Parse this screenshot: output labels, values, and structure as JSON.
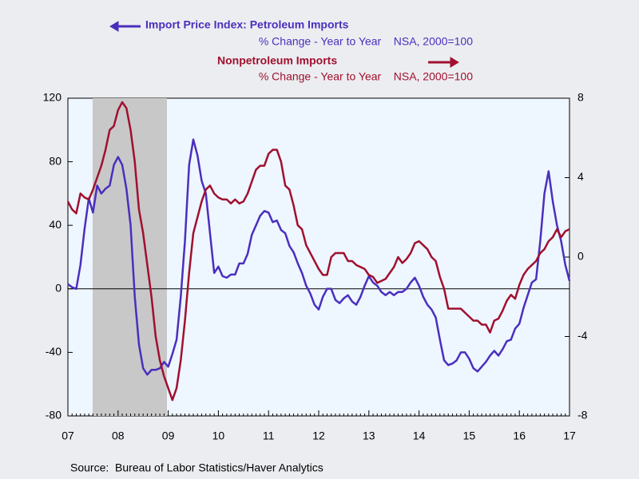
{
  "chart_data": {
    "type": "line",
    "series": [
      {
        "name": "Import Price Index: Petroleum Imports",
        "subtitle": "% Change - Year to Year    NSA, 2000=100",
        "color": "#4a2fbd",
        "axis": "y",
        "values": [
          3,
          1,
          0,
          15,
          38,
          57,
          48,
          65,
          60,
          63,
          65,
          78,
          83,
          78,
          63,
          40,
          -5,
          -35,
          -50,
          -54,
          -51,
          -51,
          -50,
          -46,
          -49,
          -41,
          -32,
          -5,
          30,
          78,
          94,
          84,
          68,
          60,
          35,
          10,
          14,
          8,
          7,
          9,
          9,
          16,
          16,
          22,
          34,
          40,
          46,
          49,
          48,
          42,
          43,
          37,
          35,
          27,
          23,
          16,
          10,
          2,
          -3,
          -10,
          -13,
          -5,
          0,
          0,
          -7,
          -9,
          -6,
          -4,
          -8,
          -10,
          -5,
          2,
          8,
          4,
          2,
          -2,
          -4,
          -2,
          -4,
          -2,
          -2,
          0,
          4,
          7,
          2,
          -5,
          -10,
          -13,
          -18,
          -32,
          -45,
          -48,
          -47,
          -45,
          -40,
          -40,
          -44,
          -50,
          -52,
          -49,
          -46,
          -42,
          -39,
          -42,
          -38,
          -33,
          -32,
          -25,
          -22,
          -12,
          -4,
          4,
          6,
          30,
          60,
          74,
          55,
          40,
          30,
          15,
          5
        ]
      },
      {
        "name": "Nonpetroleum Imports",
        "subtitle": "% Change - Year to Year    NSA, 2000=100",
        "color": "#a0102e",
        "axis": "y2",
        "values": [
          2.8,
          2.4,
          2.2,
          3.2,
          3.0,
          2.9,
          3.4,
          4.0,
          4.6,
          5.4,
          6.4,
          6.6,
          7.4,
          7.8,
          7.5,
          6.4,
          4.8,
          2.4,
          1.2,
          -0.4,
          -2.0,
          -4.0,
          -5.2,
          -6.0,
          -6.6,
          -7.2,
          -6.6,
          -5.2,
          -3.2,
          -0.8,
          1.2,
          2.0,
          2.8,
          3.4,
          3.6,
          3.2,
          3.0,
          2.9,
          2.9,
          2.7,
          2.9,
          2.7,
          2.8,
          3.2,
          3.8,
          4.4,
          4.6,
          4.6,
          5.2,
          5.4,
          5.4,
          4.8,
          3.6,
          3.4,
          2.6,
          1.6,
          1.4,
          0.6,
          0.2,
          -0.2,
          -0.6,
          -0.9,
          -0.9,
          0.0,
          0.2,
          0.2,
          0.2,
          -0.2,
          -0.2,
          -0.4,
          -0.5,
          -0.6,
          -0.9,
          -1.0,
          -1.3,
          -1.2,
          -1.1,
          -0.8,
          -0.5,
          0.0,
          -0.3,
          -0.1,
          0.2,
          0.7,
          0.8,
          0.6,
          0.4,
          0.0,
          -0.2,
          -1.0,
          -1.6,
          -2.6,
          -2.6,
          -2.6,
          -2.6,
          -2.8,
          -3.0,
          -3.2,
          -3.2,
          -3.4,
          -3.4,
          -3.8,
          -3.2,
          -3.1,
          -2.7,
          -2.2,
          -1.9,
          -2.1,
          -1.4,
          -0.9,
          -0.6,
          -0.4,
          -0.2,
          0.2,
          0.4,
          0.8,
          1.0,
          1.4,
          1.0,
          1.3,
          1.4
        ]
      }
    ],
    "categories": [
      "07",
      null,
      null,
      null,
      null,
      null,
      null,
      null,
      null,
      null,
      null,
      null,
      "08",
      null,
      null,
      null,
      null,
      null,
      null,
      null,
      null,
      null,
      null,
      null,
      "09",
      null,
      null,
      null,
      null,
      null,
      null,
      null,
      null,
      null,
      null,
      null,
      "10",
      null,
      null,
      null,
      null,
      null,
      null,
      null,
      null,
      null,
      null,
      null,
      "11",
      null,
      null,
      null,
      null,
      null,
      null,
      null,
      null,
      null,
      null,
      null,
      "12",
      null,
      null,
      null,
      null,
      null,
      null,
      null,
      null,
      null,
      null,
      null,
      "13",
      null,
      null,
      null,
      null,
      null,
      null,
      null,
      null,
      null,
      null,
      null,
      "14",
      null,
      null,
      null,
      null,
      null,
      null,
      null,
      null,
      null,
      null,
      null,
      "15",
      null,
      null,
      null,
      null,
      null,
      null,
      null,
      null,
      null,
      null,
      null,
      "16",
      null,
      null,
      null,
      null,
      null,
      null,
      null,
      null,
      null,
      null,
      null,
      "17"
    ],
    "ylim": [
      -80,
      120
    ],
    "yticks": [
      -80,
      -40,
      0,
      40,
      80,
      120
    ],
    "y2lim": [
      -8,
      8
    ],
    "y2ticks": [
      -8,
      -4,
      0,
      4,
      8
    ],
    "zero_line": true,
    "source": "Source:  Bureau of Labor Statistics/Haver Analytics"
  }
}
